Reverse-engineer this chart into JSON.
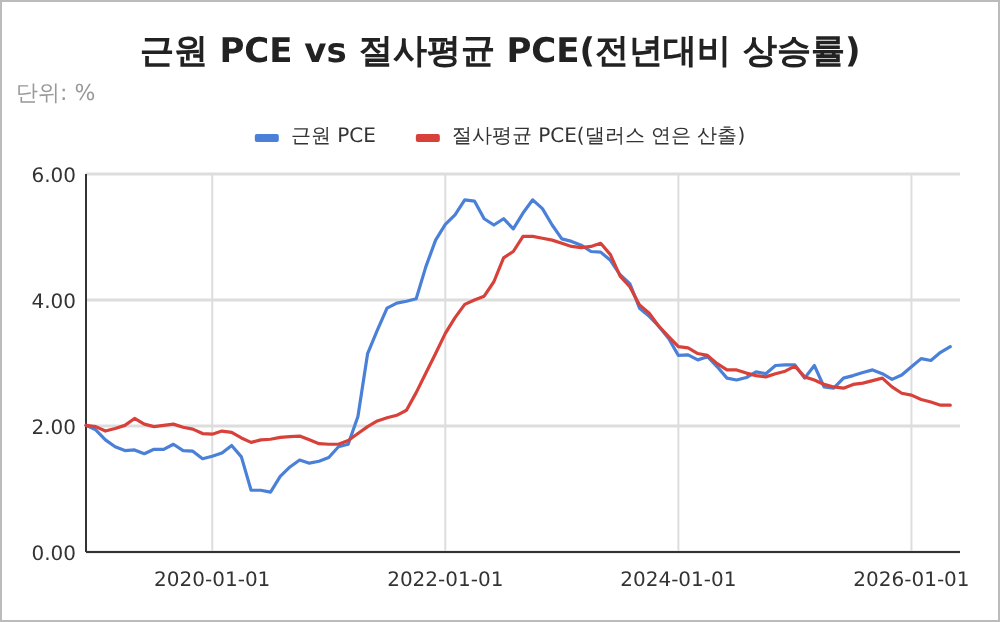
{
  "chart_data": {
    "type": "line",
    "title": "근원 PCE vs 절사평균 PCE(전년대비 상승률)",
    "annotations": [
      "단위: %"
    ],
    "legend": "top",
    "grid": true,
    "marker": "none",
    "line_style": "solid",
    "x": [
      "2018-12",
      "2019-01",
      "2019-02",
      "2019-03",
      "2019-04",
      "2019-05",
      "2019-06",
      "2019-07",
      "2019-08",
      "2019-09",
      "2019-10",
      "2019-11",
      "2019-12",
      "2020-01",
      "2020-02",
      "2020-03",
      "2020-04",
      "2020-05",
      "2020-06",
      "2020-07",
      "2020-08",
      "2020-09",
      "2020-10",
      "2020-11",
      "2020-12",
      "2021-01",
      "2021-02",
      "2021-03",
      "2021-04",
      "2021-05",
      "2021-06",
      "2021-07",
      "2021-08",
      "2021-09",
      "2021-10",
      "2021-11",
      "2021-12",
      "2022-01",
      "2022-02",
      "2022-03",
      "2022-04",
      "2022-05",
      "2022-06",
      "2022-07",
      "2022-08",
      "2022-09",
      "2022-10",
      "2022-11",
      "2022-12",
      "2023-01",
      "2023-02",
      "2023-03",
      "2023-04",
      "2023-05",
      "2023-06",
      "2023-07",
      "2023-08",
      "2023-09",
      "2023-10",
      "2023-11",
      "2023-12",
      "2024-01",
      "2024-02",
      "2024-03",
      "2024-04",
      "2024-05",
      "2024-06",
      "2024-07",
      "2024-08",
      "2024-09",
      "2024-10",
      "2024-11",
      "2024-12",
      "2025-01",
      "2025-02",
      "2025-03",
      "2025-04",
      "2025-05",
      "2025-06",
      "2025-07",
      "2025-08",
      "2025-09",
      "2025-10",
      "2025-11",
      "2025-12",
      "2026-01",
      "2026-02",
      "2026-03",
      "2026-04",
      "2026-05"
    ],
    "xlim": [
      "2018-12",
      "2026-06"
    ],
    "xticks": [
      {
        "value": "2020-01",
        "label": "2020-01-01"
      },
      {
        "value": "2022-01",
        "label": "2022-01-01"
      },
      {
        "value": "2024-01",
        "label": "2024-01-01"
      },
      {
        "value": "2026-01",
        "label": "2026-01-01"
      }
    ],
    "ylim": [
      0,
      6
    ],
    "yticks": [
      {
        "value": 0,
        "label": "0.00"
      },
      {
        "value": 2,
        "label": "2.00"
      },
      {
        "value": 4,
        "label": "4.00"
      },
      {
        "value": 6,
        "label": "6.00"
      }
    ],
    "series": [
      {
        "name": "근원 PCE",
        "color": "#4a80d8",
        "values": [
          2.01,
          1.94,
          1.78,
          1.67,
          1.61,
          1.62,
          1.56,
          1.63,
          1.63,
          1.71,
          1.61,
          1.6,
          1.48,
          1.52,
          1.57,
          1.69,
          1.51,
          0.98,
          0.98,
          0.95,
          1.2,
          1.35,
          1.46,
          1.41,
          1.44,
          1.5,
          1.67,
          1.71,
          2.15,
          3.15,
          3.52,
          3.87,
          3.95,
          3.98,
          4.02,
          4.53,
          4.95,
          5.2,
          5.35,
          5.59,
          5.57,
          5.29,
          5.19,
          5.29,
          5.13,
          5.38,
          5.59,
          5.45,
          5.19,
          4.97,
          4.93,
          4.87,
          4.77,
          4.76,
          4.63,
          4.4,
          4.26,
          3.87,
          3.74,
          3.58,
          3.39,
          3.12,
          3.13,
          3.05,
          3.1,
          2.94,
          2.76,
          2.73,
          2.77,
          2.86,
          2.83,
          2.96,
          2.97,
          2.97,
          2.76,
          2.96,
          2.62,
          2.6,
          2.76,
          2.8,
          2.85,
          2.89,
          2.83,
          2.74,
          2.81,
          2.94,
          3.07,
          3.04,
          3.17,
          3.26
        ]
      },
      {
        "name": "절사평균 PCE(댈러스 연은 산출)",
        "color": "#d8413a",
        "values": [
          2.01,
          1.99,
          1.92,
          1.96,
          2.01,
          2.12,
          2.03,
          1.99,
          2.01,
          2.03,
          1.98,
          1.95,
          1.88,
          1.87,
          1.92,
          1.9,
          1.81,
          1.74,
          1.78,
          1.79,
          1.82,
          1.83,
          1.84,
          1.78,
          1.72,
          1.71,
          1.71,
          1.77,
          1.88,
          1.99,
          2.08,
          2.13,
          2.17,
          2.25,
          2.53,
          2.84,
          3.15,
          3.47,
          3.72,
          3.93,
          4.0,
          4.06,
          4.29,
          4.67,
          4.77,
          5.01,
          5.01,
          4.98,
          4.95,
          4.9,
          4.85,
          4.83,
          4.85,
          4.9,
          4.72,
          4.38,
          4.21,
          3.92,
          3.79,
          3.58,
          3.42,
          3.26,
          3.24,
          3.15,
          3.12,
          2.99,
          2.89,
          2.89,
          2.84,
          2.8,
          2.78,
          2.83,
          2.87,
          2.95,
          2.78,
          2.73,
          2.66,
          2.62,
          2.6,
          2.66,
          2.68,
          2.72,
          2.76,
          2.62,
          2.52,
          2.49,
          2.42,
          2.38,
          2.33,
          2.33
        ]
      }
    ]
  }
}
